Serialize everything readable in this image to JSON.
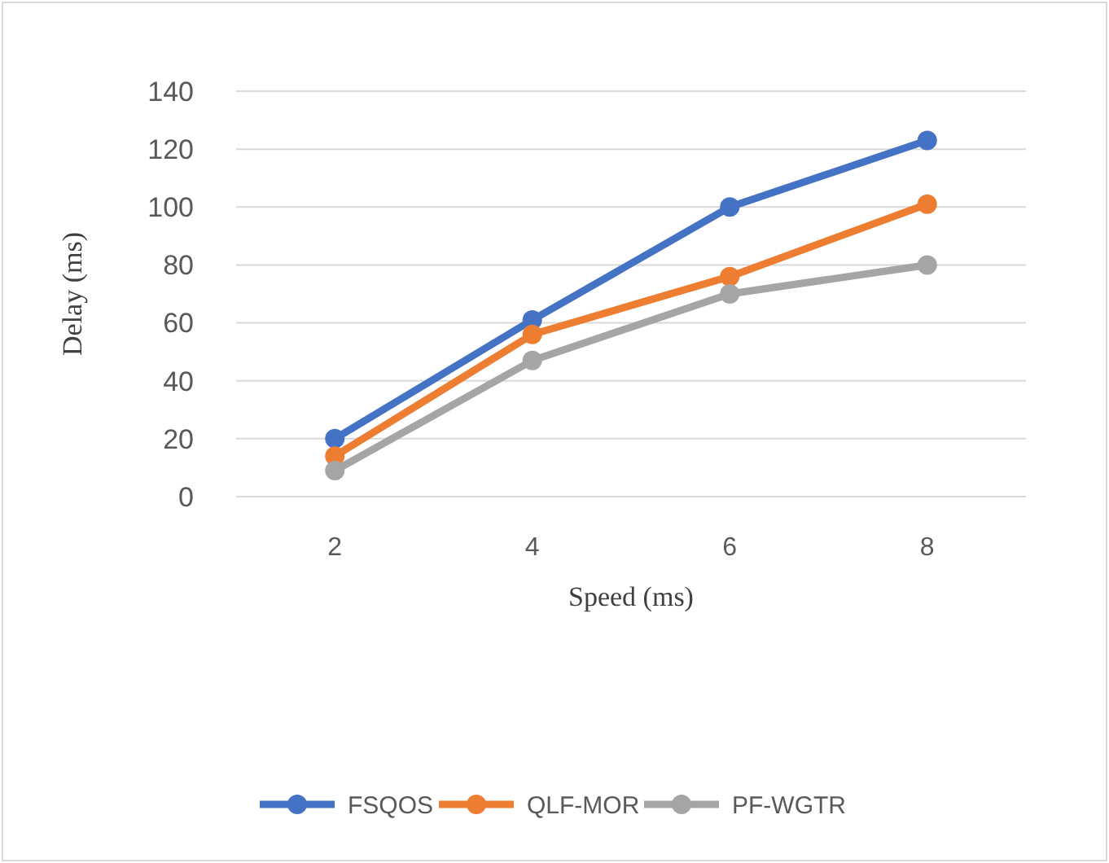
{
  "chart_data": {
    "type": "line",
    "xlabel": "Speed (ms)",
    "ylabel": "Delay (ms)",
    "categories": [
      "2",
      "4",
      "6",
      "8"
    ],
    "series": [
      {
        "name": "FSQOS",
        "color": "#4472c4",
        "values": [
          20,
          61,
          100,
          123
        ]
      },
      {
        "name": "QLF-MOR",
        "color": "#ed7d31",
        "values": [
          14,
          56,
          76,
          101
        ]
      },
      {
        "name": "PF-WGTR",
        "color": "#a5a5a5",
        "values": [
          9,
          47,
          70,
          80
        ]
      }
    ],
    "ylim": [
      0,
      140
    ],
    "yticks": [
      0,
      20,
      40,
      60,
      80,
      100,
      120,
      140
    ],
    "grid": "y",
    "legend": "bottom",
    "marker": "circle",
    "line_style": "solid"
  }
}
